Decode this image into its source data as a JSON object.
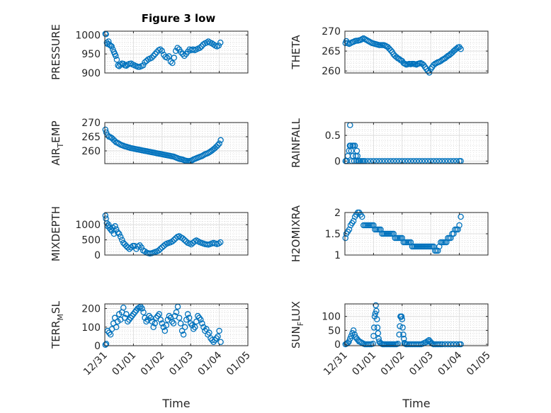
{
  "figure": {
    "title": "Figure 3 low",
    "marker_color": "#0072bd",
    "grid": "on (major and minor, dotted)"
  },
  "chart_data": [
    {
      "type": "scatter",
      "ylabel": "PRESSURE",
      "ylim": [
        900,
        1010
      ],
      "yticks": [
        "900",
        "950",
        "1000"
      ],
      "x": [
        0.02,
        0.04,
        0.07,
        0.1,
        0.13,
        0.16,
        0.2,
        0.24,
        0.28,
        0.32,
        0.35,
        0.38,
        0.42,
        0.46,
        0.5,
        0.55,
        0.6,
        0.65,
        0.7,
        0.75,
        0.8,
        0.86,
        0.92,
        0.98,
        1.04,
        1.1,
        1.16,
        1.22,
        1.28,
        1.34,
        1.4,
        1.46,
        1.52,
        1.58,
        1.64,
        1.7,
        1.76,
        1.82,
        1.88,
        1.94,
        2.0,
        2.06,
        2.12,
        2.18,
        2.24,
        2.3,
        2.36,
        2.42,
        2.48,
        2.54,
        2.6,
        2.66,
        2.72,
        2.78,
        2.84,
        2.9,
        2.96,
        3.02,
        3.08,
        3.14,
        3.2,
        3.26,
        3.32,
        3.38,
        3.44,
        3.5,
        3.56,
        3.62,
        3.68,
        3.74,
        3.8,
        3.86,
        3.92,
        3.98,
        4.04
      ],
      "values": [
        1003,
        1002,
        980,
        976,
        983,
        975,
        972,
        970,
        962,
        955,
        950,
        945,
        935,
        920,
        918,
        922,
        925,
        924,
        920,
        919,
        922,
        924,
        925,
        922,
        920,
        918,
        916,
        916,
        918,
        920,
        928,
        932,
        936,
        938,
        940,
        945,
        950,
        955,
        960,
        962,
        958,
        948,
        942,
        940,
        944,
        930,
        926,
        940,
        958,
        966,
        962,
        955,
        950,
        945,
        950,
        956,
        962,
        960,
        962,
        960,
        962,
        964,
        966,
        970,
        975,
        978,
        980,
        983,
        980,
        978,
        975,
        972,
        970,
        972,
        980
      ]
    },
    {
      "type": "scatter",
      "ylabel": "THETA",
      "ylim": [
        259.5,
        270
      ],
      "yticks": [
        "260",
        "265",
        "270"
      ],
      "x": [
        0.02,
        0.05,
        0.1,
        0.15,
        0.2,
        0.25,
        0.3,
        0.35,
        0.4,
        0.45,
        0.5,
        0.55,
        0.6,
        0.65,
        0.7,
        0.75,
        0.8,
        0.85,
        0.9,
        0.95,
        1.0,
        1.05,
        1.1,
        1.15,
        1.2,
        1.25,
        1.3,
        1.35,
        1.4,
        1.45,
        1.5,
        1.55,
        1.6,
        1.65,
        1.7,
        1.75,
        1.8,
        1.85,
        1.9,
        1.95,
        2.0,
        2.05,
        2.1,
        2.15,
        2.2,
        2.25,
        2.3,
        2.35,
        2.4,
        2.45,
        2.5,
        2.55,
        2.6,
        2.65,
        2.7,
        2.75,
        2.8,
        2.85,
        2.9,
        2.95,
        3.0,
        3.05,
        3.1,
        3.15,
        3.2,
        3.25,
        3.3,
        3.35,
        3.4,
        3.45,
        3.5,
        3.55,
        3.6,
        3.65,
        3.7,
        3.75,
        3.8,
        3.85,
        3.9,
        3.95,
        4.0,
        4.05
      ],
      "values": [
        267,
        267.5,
        267,
        266.8,
        267,
        267.2,
        267.3,
        267.5,
        267.6,
        267.6,
        267.7,
        267.8,
        268,
        268.2,
        268,
        267.8,
        267.6,
        267.4,
        267.2,
        267,
        266.9,
        266.8,
        266.7,
        266.6,
        266.5,
        266.5,
        266.5,
        266.5,
        266.4,
        266.2,
        266,
        265.6,
        265.2,
        264.8,
        264.2,
        263.8,
        263.5,
        263.2,
        263,
        262.7,
        262.5,
        262,
        261.8,
        261.6,
        261.7,
        261.8,
        261.7,
        261.8,
        261.8,
        261.7,
        261.6,
        261.8,
        261.9,
        262,
        261.8,
        261.5,
        261,
        260.5,
        260,
        259.6,
        260.5,
        261,
        261.5,
        261.8,
        262,
        262.2,
        262.3,
        262.5,
        262.8,
        263,
        263.2,
        263.5,
        263.8,
        264,
        264.3,
        264.6,
        265,
        265.3,
        265.6,
        265.9,
        266,
        265.5
      ]
    },
    {
      "type": "scatter",
      "ylabel": "AIR_TEMP",
      "ylim": [
        255.5,
        270
      ],
      "yticks": [
        "260",
        "265",
        "270"
      ],
      "x": [
        0.02,
        0.05,
        0.1,
        0.15,
        0.2,
        0.25,
        0.3,
        0.35,
        0.4,
        0.45,
        0.5,
        0.55,
        0.6,
        0.65,
        0.7,
        0.75,
        0.8,
        0.85,
        0.9,
        0.95,
        1.0,
        1.05,
        1.1,
        1.15,
        1.2,
        1.25,
        1.3,
        1.35,
        1.4,
        1.45,
        1.5,
        1.55,
        1.6,
        1.65,
        1.7,
        1.75,
        1.8,
        1.85,
        1.9,
        1.95,
        2.0,
        2.05,
        2.1,
        2.15,
        2.2,
        2.25,
        2.3,
        2.35,
        2.4,
        2.45,
        2.5,
        2.55,
        2.6,
        2.65,
        2.7,
        2.75,
        2.8,
        2.85,
        2.9,
        2.95,
        3.0,
        3.05,
        3.1,
        3.15,
        3.2,
        3.25,
        3.3,
        3.35,
        3.4,
        3.45,
        3.5,
        3.55,
        3.6,
        3.65,
        3.7,
        3.75,
        3.8,
        3.85,
        3.9,
        3.95,
        4.0,
        4.05
      ],
      "values": [
        267.5,
        266.5,
        265.5,
        265,
        264.8,
        264.5,
        264,
        263.5,
        263,
        262.8,
        262.5,
        262.2,
        262,
        261.8,
        261.6,
        261.5,
        261.3,
        261.2,
        261,
        260.9,
        260.8,
        260.7,
        260.6,
        260.5,
        260.4,
        260.3,
        260.2,
        260.1,
        260,
        259.9,
        259.8,
        259.7,
        259.6,
        259.5,
        259.4,
        259.3,
        259.2,
        259.1,
        259,
        258.9,
        258.8,
        258.7,
        258.6,
        258.5,
        258.4,
        258.3,
        258.2,
        258.1,
        258,
        257.8,
        257.6,
        257.4,
        257.2,
        257.1,
        257,
        256.8,
        256.6,
        256.5,
        256.4,
        256.4,
        256.5,
        256.7,
        257,
        257.2,
        257.4,
        257.6,
        257.8,
        258,
        258.2,
        258.5,
        258.8,
        259,
        259.2,
        259.5,
        259.8,
        260.2,
        260.6,
        261,
        261.5,
        262,
        262.6,
        263.8
      ]
    },
    {
      "type": "scatter",
      "ylabel": "RAINFALL",
      "ylim": [
        -0.05,
        0.75
      ],
      "yticks": [
        "0",
        "0.5"
      ],
      "x": [
        0.02,
        0.06,
        0.1,
        0.14,
        0.17,
        0.18,
        0.2,
        0.22,
        0.24,
        0.26,
        0.28,
        0.3,
        0.32,
        0.35,
        0.38,
        0.4,
        0.42,
        0.44,
        0.46,
        0.5,
        0.55,
        0.6,
        0.65,
        0.7,
        0.8,
        0.9,
        1.0,
        1.1,
        1.2,
        1.3,
        1.4,
        1.5,
        1.6,
        1.7,
        1.8,
        1.9,
        2.0,
        2.1,
        2.2,
        2.3,
        2.4,
        2.5,
        2.6,
        2.7,
        2.8,
        2.9,
        3.0,
        3.1,
        3.2,
        3.3,
        3.4,
        3.5,
        3.6,
        3.7,
        3.8,
        3.9,
        4.0,
        4.05
      ],
      "values": [
        0,
        0,
        0.1,
        0.2,
        0.3,
        0.7,
        0.3,
        0.2,
        0,
        0.3,
        0.1,
        0.3,
        0,
        0.3,
        0.1,
        0,
        0.2,
        0.1,
        0,
        0,
        0,
        0,
        0,
        0,
        0,
        0,
        0,
        0,
        0,
        0,
        0,
        0,
        0,
        0,
        0,
        0,
        0,
        0,
        0,
        0,
        0,
        0,
        0,
        0,
        0,
        0,
        0,
        0,
        0,
        0,
        0,
        0,
        0,
        0,
        0,
        0,
        0,
        0
      ]
    },
    {
      "type": "scatter",
      "ylabel": "MIXDEPTH",
      "ylim": [
        0,
        1400
      ],
      "yticks": [
        "0",
        "500",
        "1000"
      ],
      "x": [
        0.02,
        0.04,
        0.07,
        0.1,
        0.13,
        0.16,
        0.2,
        0.24,
        0.28,
        0.32,
        0.36,
        0.4,
        0.45,
        0.5,
        0.55,
        0.6,
        0.65,
        0.7,
        0.75,
        0.8,
        0.86,
        0.92,
        0.98,
        1.04,
        1.1,
        1.16,
        1.22,
        1.28,
        1.34,
        1.4,
        1.46,
        1.52,
        1.58,
        1.64,
        1.7,
        1.76,
        1.82,
        1.88,
        1.94,
        2.0,
        2.06,
        2.12,
        2.18,
        2.24,
        2.3,
        2.36,
        2.42,
        2.48,
        2.54,
        2.6,
        2.66,
        2.72,
        2.78,
        2.84,
        2.9,
        2.96,
        3.02,
        3.08,
        3.14,
        3.2,
        3.26,
        3.32,
        3.38,
        3.44,
        3.5,
        3.56,
        3.62,
        3.68,
        3.74,
        3.8,
        3.86,
        3.92,
        3.98,
        4.04
      ],
      "values": [
        1300,
        1200,
        1050,
        950,
        1000,
        900,
        850,
        800,
        900,
        700,
        950,
        850,
        750,
        700,
        600,
        500,
        400,
        350,
        300,
        250,
        200,
        250,
        300,
        300,
        200,
        280,
        320,
        250,
        150,
        120,
        80,
        60,
        50,
        60,
        80,
        100,
        120,
        150,
        200,
        250,
        300,
        350,
        380,
        400,
        420,
        450,
        500,
        550,
        600,
        620,
        580,
        550,
        500,
        450,
        400,
        380,
        350,
        400,
        450,
        480,
        450,
        420,
        400,
        380,
        360,
        350,
        340,
        360,
        380,
        400,
        380,
        360,
        380,
        420
      ]
    },
    {
      "type": "scatter",
      "ylabel": "H2OMIXRA",
      "ylim": [
        1,
        2
      ],
      "yticks": [
        "1",
        "1.5",
        "2"
      ],
      "x": [
        0.02,
        0.05,
        0.1,
        0.15,
        0.2,
        0.25,
        0.3,
        0.35,
        0.4,
        0.45,
        0.5,
        0.55,
        0.6,
        0.65,
        0.7,
        0.75,
        0.8,
        0.85,
        0.9,
        0.95,
        1.0,
        1.05,
        1.1,
        1.15,
        1.2,
        1.25,
        1.3,
        1.35,
        1.4,
        1.45,
        1.5,
        1.55,
        1.6,
        1.65,
        1.7,
        1.75,
        1.8,
        1.85,
        1.9,
        1.95,
        2.0,
        2.05,
        2.1,
        2.15,
        2.2,
        2.25,
        2.3,
        2.35,
        2.4,
        2.45,
        2.5,
        2.55,
        2.6,
        2.65,
        2.7,
        2.75,
        2.8,
        2.85,
        2.9,
        2.95,
        3.0,
        3.05,
        3.1,
        3.15,
        3.2,
        3.25,
        3.3,
        3.35,
        3.4,
        3.45,
        3.5,
        3.55,
        3.6,
        3.65,
        3.7,
        3.75,
        3.8,
        3.85,
        3.9,
        3.95,
        4.0,
        4.05
      ],
      "values": [
        1.4,
        1.5,
        1.55,
        1.6,
        1.7,
        1.75,
        1.8,
        1.9,
        1.95,
        2,
        2,
        1.95,
        1.9,
        1.7,
        1.7,
        1.7,
        1.7,
        1.7,
        1.7,
        1.7,
        1.7,
        1.6,
        1.6,
        1.6,
        1.6,
        1.6,
        1.5,
        1.5,
        1.5,
        1.5,
        1.5,
        1.5,
        1.5,
        1.5,
        1.5,
        1.4,
        1.4,
        1.4,
        1.4,
        1.4,
        1.4,
        1.3,
        1.3,
        1.3,
        1.3,
        1.3,
        1.3,
        1.2,
        1.2,
        1.2,
        1.2,
        1.2,
        1.2,
        1.2,
        1.2,
        1.2,
        1.2,
        1.2,
        1.2,
        1.2,
        1.2,
        1.2,
        1.2,
        1.1,
        1.1,
        1.1,
        1.2,
        1.3,
        1.3,
        1.3,
        1.3,
        1.3,
        1.4,
        1.4,
        1.4,
        1.5,
        1.5,
        1.6,
        1.6,
        1.6,
        1.7,
        1.9
      ]
    },
    {
      "type": "scatter",
      "ylabel": "TERR_MSL",
      "ylim": [
        0,
        225
      ],
      "yticks": [
        "0",
        "100",
        "200"
      ],
      "x": [
        0.02,
        0.05,
        0.1,
        0.15,
        0.2,
        0.25,
        0.3,
        0.35,
        0.4,
        0.45,
        0.5,
        0.55,
        0.6,
        0.65,
        0.7,
        0.75,
        0.8,
        0.85,
        0.9,
        0.95,
        1.0,
        1.05,
        1.1,
        1.15,
        1.2,
        1.25,
        1.3,
        1.35,
        1.4,
        1.45,
        1.5,
        1.55,
        1.6,
        1.65,
        1.7,
        1.75,
        1.8,
        1.85,
        1.9,
        1.95,
        2.0,
        2.05,
        2.1,
        2.15,
        2.2,
        2.25,
        2.3,
        2.35,
        2.4,
        2.45,
        2.5,
        2.55,
        2.6,
        2.65,
        2.7,
        2.75,
        2.8,
        2.85,
        2.9,
        2.95,
        3.0,
        3.05,
        3.1,
        3.15,
        3.2,
        3.25,
        3.3,
        3.35,
        3.4,
        3.45,
        3.5,
        3.55,
        3.6,
        3.65,
        3.7,
        3.75,
        3.8,
        3.85,
        3.9,
        3.95,
        4.0,
        4.05
      ],
      "values": [
        5,
        10,
        80,
        70,
        60,
        90,
        120,
        150,
        100,
        130,
        170,
        140,
        180,
        205,
        150,
        170,
        130,
        140,
        150,
        160,
        170,
        180,
        190,
        200,
        205,
        210,
        200,
        180,
        150,
        130,
        140,
        160,
        150,
        130,
        100,
        120,
        150,
        160,
        170,
        140,
        120,
        100,
        80,
        110,
        140,
        160,
        150,
        130,
        120,
        160,
        180,
        210,
        150,
        120,
        80,
        60,
        100,
        140,
        170,
        150,
        120,
        110,
        90,
        100,
        130,
        160,
        150,
        140,
        120,
        100,
        80,
        90,
        60,
        70,
        40,
        30,
        20,
        30,
        40,
        50,
        80,
        20
      ]
    },
    {
      "type": "scatter",
      "ylabel": "SUN_FLUX",
      "ylim": [
        -5,
        145
      ],
      "yticks": [
        "0",
        "50",
        "100"
      ],
      "x": [
        0.02,
        0.06,
        0.1,
        0.14,
        0.18,
        0.22,
        0.26,
        0.3,
        0.34,
        0.38,
        0.42,
        0.46,
        0.5,
        0.55,
        0.6,
        0.65,
        0.7,
        0.75,
        0.8,
        0.86,
        0.92,
        0.98,
        1.0,
        1.02,
        1.04,
        1.06,
        1.08,
        1.1,
        1.12,
        1.14,
        1.16,
        1.18,
        1.2,
        1.24,
        1.28,
        1.32,
        1.36,
        1.4,
        1.45,
        1.5,
        1.55,
        1.6,
        1.65,
        1.7,
        1.75,
        1.8,
        1.85,
        1.9,
        1.92,
        1.94,
        1.96,
        1.98,
        2.0,
        2.02,
        2.04,
        2.06,
        2.08,
        2.1,
        2.14,
        2.18,
        2.24,
        2.3,
        2.36,
        2.42,
        2.48,
        2.54,
        2.6,
        2.66,
        2.72,
        2.78,
        2.84,
        2.9,
        2.94,
        2.98,
        3.02,
        3.06,
        3.1,
        3.16,
        3.22,
        3.28,
        3.34,
        3.4,
        3.5,
        3.6,
        3.7,
        3.8,
        3.9,
        4.0,
        4.05
      ],
      "values": [
        0,
        2,
        5,
        10,
        20,
        30,
        40,
        50,
        35,
        25,
        20,
        15,
        10,
        8,
        5,
        2,
        0,
        0,
        0,
        0,
        0,
        2,
        30,
        60,
        100,
        110,
        140,
        120,
        90,
        60,
        40,
        20,
        10,
        5,
        2,
        0,
        0,
        0,
        0,
        0,
        0,
        0,
        0,
        0,
        0,
        0,
        2,
        35,
        65,
        100,
        98,
        100,
        90,
        60,
        35,
        20,
        5,
        2,
        0,
        0,
        0,
        0,
        0,
        0,
        0,
        0,
        0,
        0,
        2,
        5,
        8,
        12,
        15,
        10,
        5,
        2,
        0,
        0,
        0,
        0,
        0,
        0,
        0,
        0,
        0,
        0,
        0,
        0,
        0
      ]
    }
  ],
  "x_axis": {
    "xlim": [
      0,
      5
    ],
    "ticks": [
      "12/31",
      "01/01",
      "01/02",
      "01/03",
      "01/04",
      "01/05"
    ],
    "label": "Time"
  }
}
